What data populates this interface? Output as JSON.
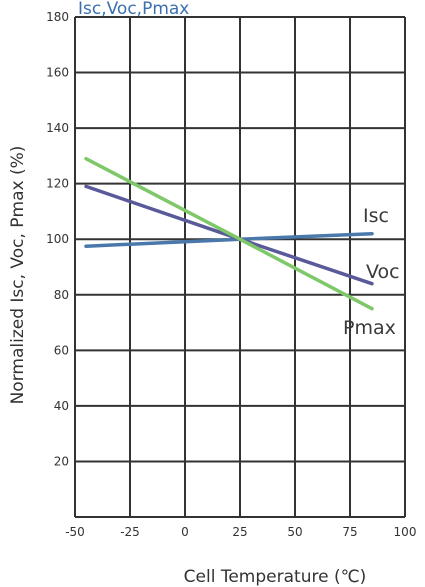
{
  "chart_data": {
    "type": "line",
    "title": "Isc,Voc,Pmax",
    "xlabel": "Cell Temperature (℃)",
    "ylabel": "Normalized Isc, Voc, Pmax (%)",
    "xlim": [
      -50,
      100
    ],
    "ylim": [
      0,
      180
    ],
    "x_ticks": [
      -50,
      -25,
      0,
      25,
      50,
      75,
      100
    ],
    "y_ticks": [
      20,
      40,
      60,
      80,
      100,
      120,
      140,
      160,
      180
    ],
    "grid": true,
    "series": [
      {
        "name": "Isc",
        "color": "#4a78aa",
        "x": [
          -45,
          25,
          85
        ],
        "y": [
          97.5,
          100,
          102
        ]
      },
      {
        "name": "Voc",
        "color": "#5a5a9a",
        "x": [
          -45,
          25,
          85
        ],
        "y": [
          119,
          100,
          84
        ]
      },
      {
        "name": "Pmax",
        "color": "#7ec86a",
        "x": [
          -45,
          25,
          85
        ],
        "y": [
          129,
          100,
          75
        ]
      }
    ]
  }
}
